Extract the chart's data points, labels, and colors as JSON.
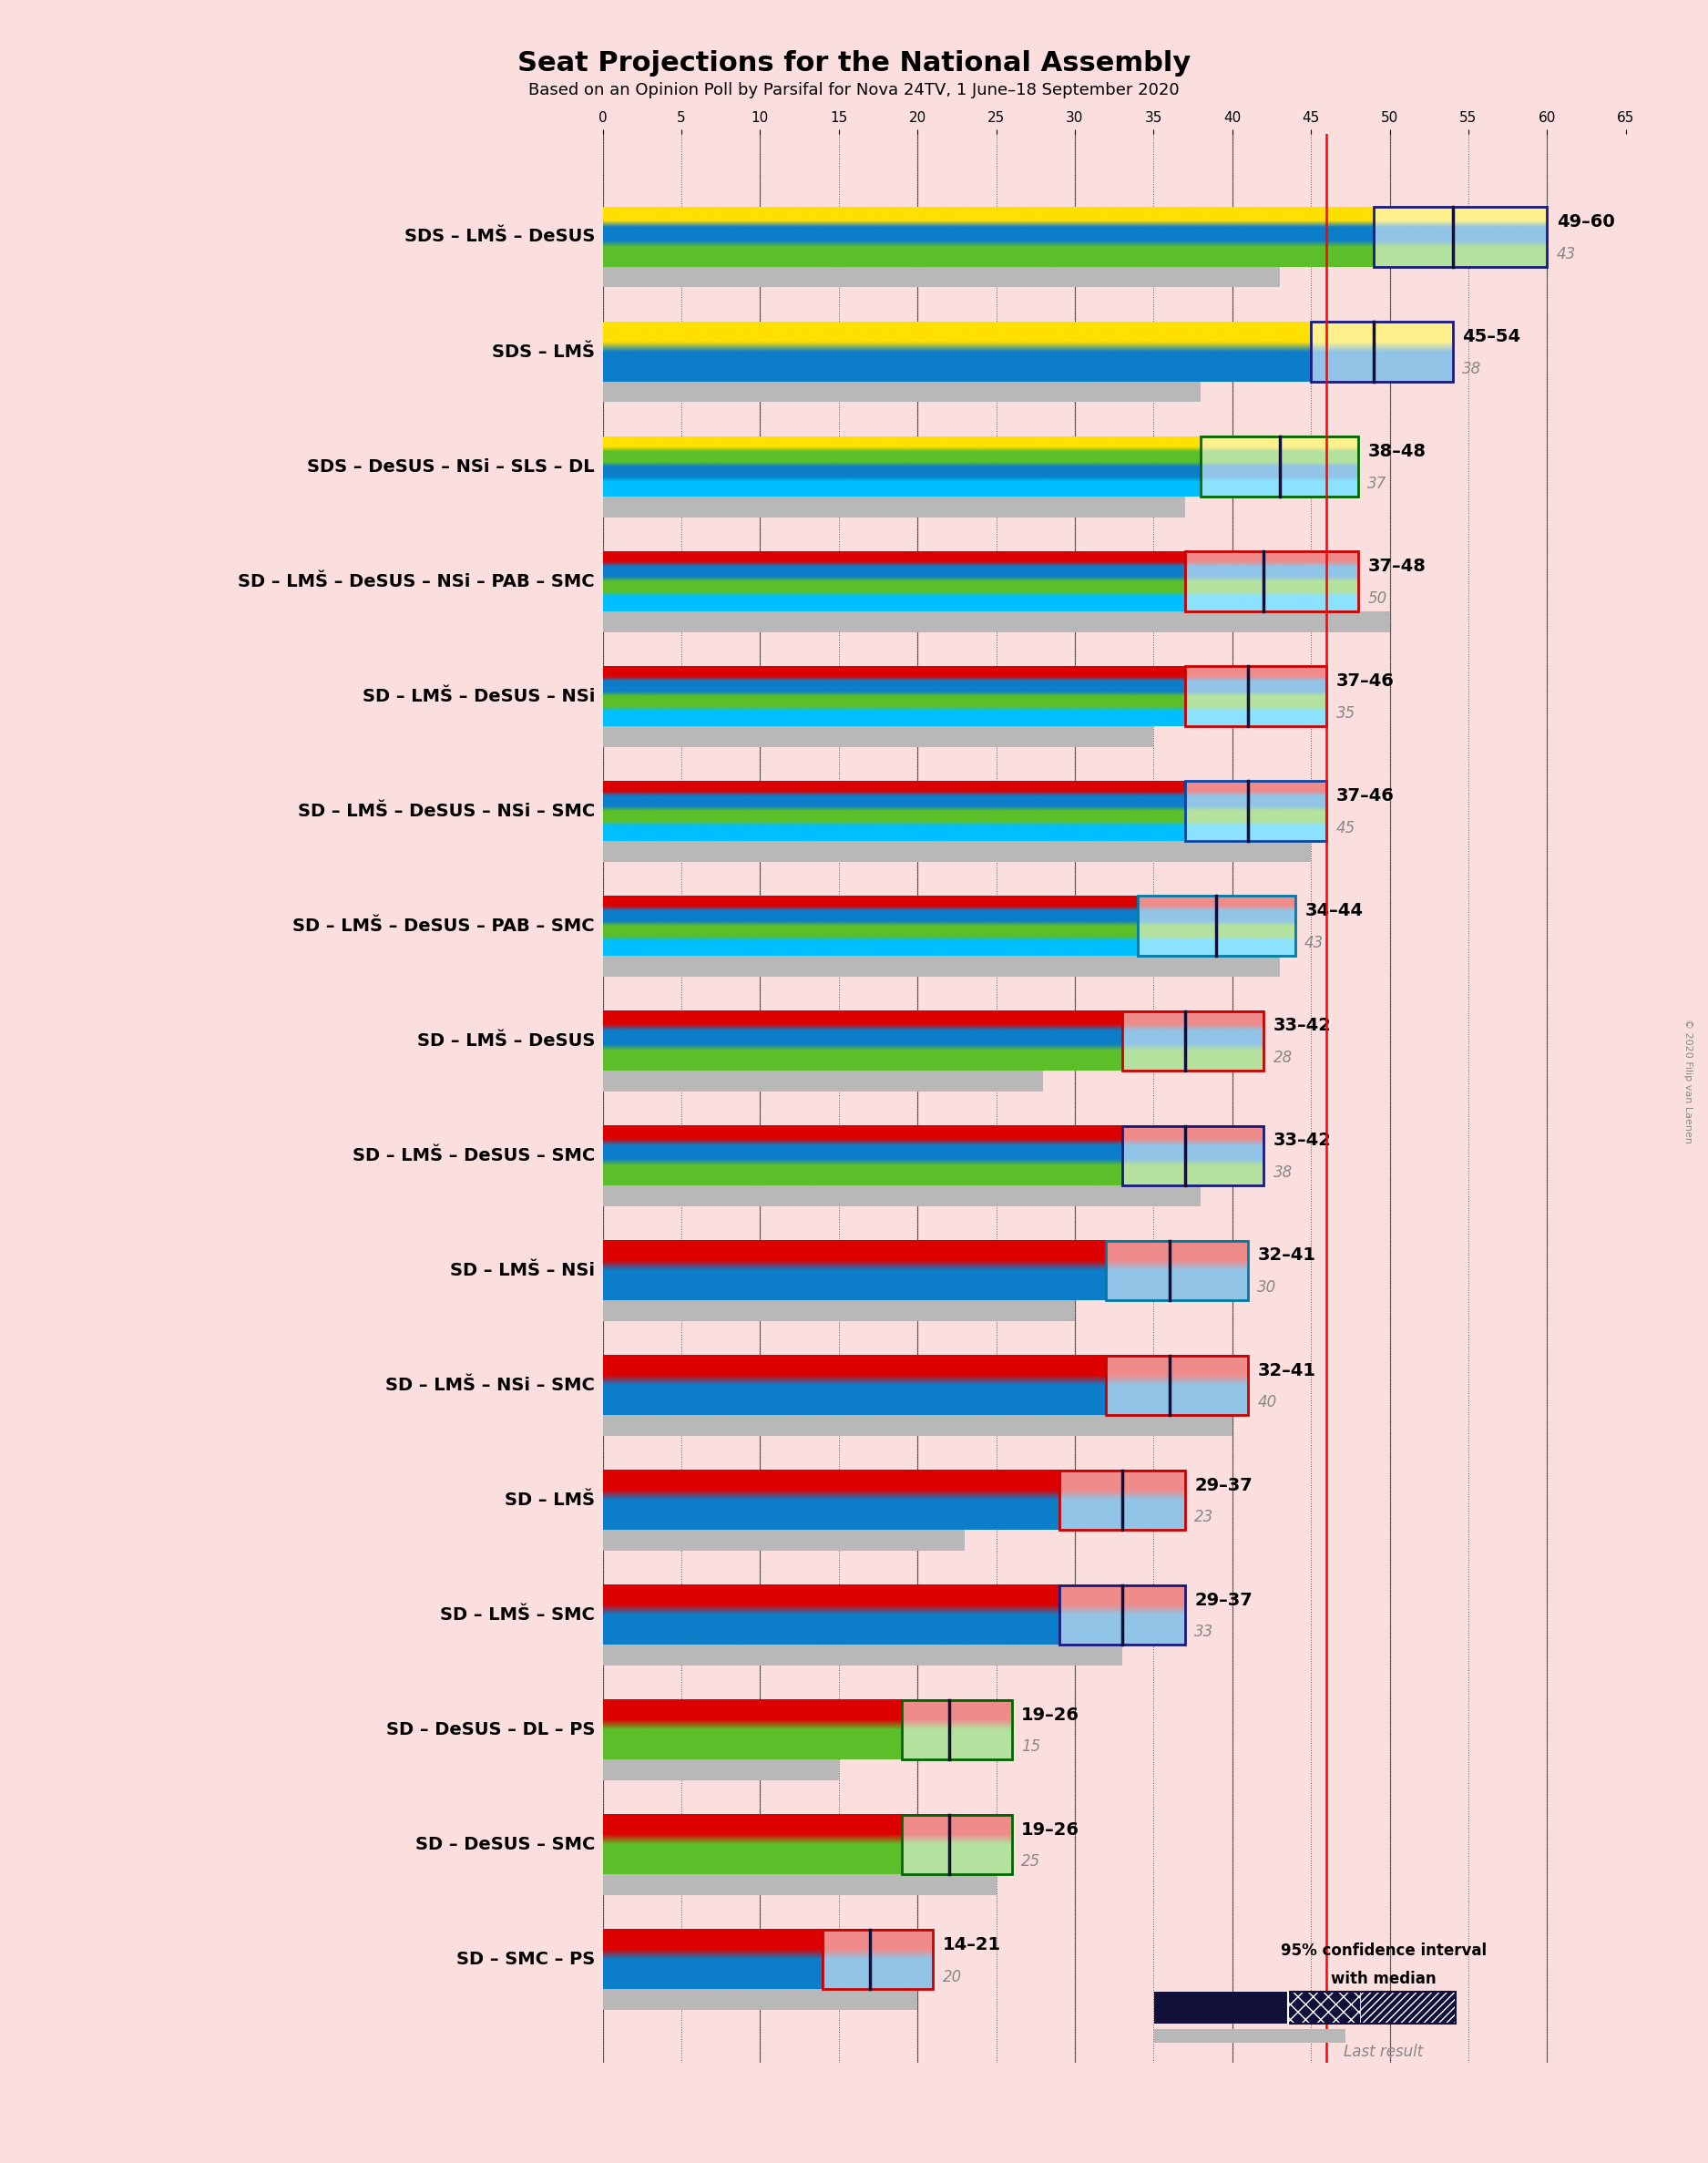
{
  "title": "Seat Projections for the National Assembly",
  "subtitle": "Based on an Opinion Poll by Parsifal for Nova 24TV, 1 June–18 September 2020",
  "background_color": "#FBDEDE",
  "majority_line": 46,
  "x_max": 65,
  "x_min": 0,
  "copyright": "© 2020 Filip van Laenen",
  "coalitions": [
    {
      "name": "SDS – LMŠ – DeSUS",
      "low": 49,
      "high": 60,
      "median": 54,
      "last": 43,
      "colors": [
        "#FFE000",
        "#0C7EC9",
        "#5CBF2A"
      ],
      "ci_border": "#1A1A7F"
    },
    {
      "name": "SDS – LMŠ",
      "low": 45,
      "high": 54,
      "median": 49,
      "last": 38,
      "colors": [
        "#FFE000",
        "#0C7EC9"
      ],
      "ci_border": "#1A1A7F"
    },
    {
      "name": "SDS – DeSUS – NSi – SLS – DL",
      "low": 38,
      "high": 48,
      "median": 43,
      "last": 37,
      "colors": [
        "#FFE000",
        "#5CBF2A",
        "#0C7EC9",
        "#00BFFF"
      ],
      "ci_border": "#006600"
    },
    {
      "name": "SD – LMŠ – DeSUS – NSi – PAB – SMC",
      "low": 37,
      "high": 48,
      "median": 42,
      "last": 50,
      "colors": [
        "#DD0000",
        "#0C7EC9",
        "#5CBF2A",
        "#00BFFF"
      ],
      "ci_border": "#CC0000"
    },
    {
      "name": "SD – LMŠ – DeSUS – NSi",
      "low": 37,
      "high": 46,
      "median": 41,
      "last": 35,
      "colors": [
        "#DD0000",
        "#0C7EC9",
        "#5CBF2A",
        "#00BFFF"
      ],
      "ci_border": "#CC0000"
    },
    {
      "name": "SD – LMŠ – DeSUS – NSi – SMC",
      "low": 37,
      "high": 46,
      "median": 41,
      "last": 45,
      "colors": [
        "#DD0000",
        "#0C7EC9",
        "#5CBF2A",
        "#00BFFF"
      ],
      "ci_border": "#0C46A0"
    },
    {
      "name": "SD – LMŠ – DeSUS – PAB – SMC",
      "low": 34,
      "high": 44,
      "median": 39,
      "last": 43,
      "colors": [
        "#DD0000",
        "#0C7EC9",
        "#5CBF2A",
        "#00BFFF"
      ],
      "ci_border": "#007BA7"
    },
    {
      "name": "SD – LMŠ – DeSUS",
      "low": 33,
      "high": 42,
      "median": 37,
      "last": 28,
      "colors": [
        "#DD0000",
        "#0C7EC9",
        "#5CBF2A"
      ],
      "ci_border": "#CC0000"
    },
    {
      "name": "SD – LMŠ – DeSUS – SMC",
      "low": 33,
      "high": 42,
      "median": 37,
      "last": 38,
      "colors": [
        "#DD0000",
        "#0C7EC9",
        "#5CBF2A"
      ],
      "ci_border": "#1A1A7F"
    },
    {
      "name": "SD – LMŠ – NSi",
      "low": 32,
      "high": 41,
      "median": 36,
      "last": 30,
      "colors": [
        "#DD0000",
        "#0C7EC9"
      ],
      "ci_border": "#007BA7"
    },
    {
      "name": "SD – LMŠ – NSi – SMC",
      "low": 32,
      "high": 41,
      "median": 36,
      "last": 40,
      "colors": [
        "#DD0000",
        "#0C7EC9"
      ],
      "ci_border": "#CC0000"
    },
    {
      "name": "SD – LMŠ",
      "low": 29,
      "high": 37,
      "median": 33,
      "last": 23,
      "colors": [
        "#DD0000",
        "#0C7EC9"
      ],
      "ci_border": "#CC0000"
    },
    {
      "name": "SD – LMŠ – SMC",
      "low": 29,
      "high": 37,
      "median": 33,
      "last": 33,
      "colors": [
        "#DD0000",
        "#0C7EC9"
      ],
      "ci_border": "#1A1A7F"
    },
    {
      "name": "SD – DeSUS – DL – PS",
      "low": 19,
      "high": 26,
      "median": 22,
      "last": 15,
      "colors": [
        "#DD0000",
        "#5CBF2A"
      ],
      "ci_border": "#006600"
    },
    {
      "name": "SD – DeSUS – SMC",
      "low": 19,
      "high": 26,
      "median": 22,
      "last": 25,
      "colors": [
        "#DD0000",
        "#5CBF2A"
      ],
      "ci_border": "#006600"
    },
    {
      "name": "SD – SMC – PS",
      "low": 14,
      "high": 21,
      "median": 17,
      "last": 20,
      "colors": [
        "#DD0000",
        "#0C7EC9"
      ],
      "ci_border": "#CC0000"
    }
  ]
}
